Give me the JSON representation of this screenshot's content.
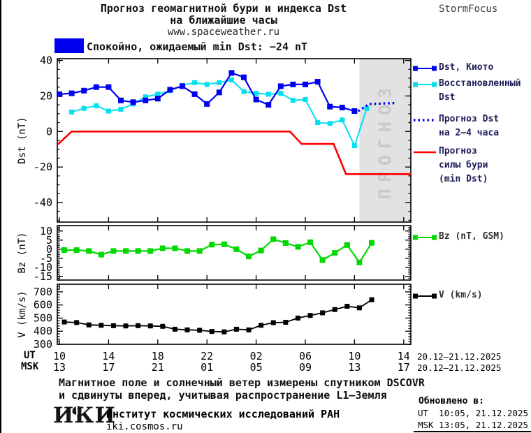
{
  "header": {
    "title_line1": "Прогноз геомагнитной бури и индекса Dst",
    "title_line2": "на ближайшие часы",
    "site_url": "www.spaceweather.ru",
    "brand": "StormFocus"
  },
  "status": {
    "label": "Спокойно, ожидаемый min Dst: −24 nT",
    "swatch_color": "#0000f0"
  },
  "colors": {
    "dst_kyoto": "#0000f0",
    "dst_restored": "#00e0ee",
    "dst_forecast": "#0000f0",
    "storm_forecast": "#ff0000",
    "bz": "#00d800",
    "v": "#000000",
    "forecast_region_fill": "#e2e2e2",
    "forecast_region_text": "#c9c9c9"
  },
  "chart_data": [
    {
      "type": "line",
      "ylabel": "Dst (nT)",
      "ylim": [
        -51,
        41
      ],
      "yticks": [
        40,
        20,
        0,
        -20,
        -40
      ],
      "y_minor_step": 5,
      "xticks_hours": [
        0,
        4,
        8,
        12,
        16,
        20,
        24,
        28
      ],
      "x_start_label": "10 UT 20.12.2025",
      "forecast_region": {
        "start_hour": 24.4,
        "label": "ПРОГНОЗ"
      },
      "series": [
        {
          "name": "Прогноз силы бури (min Dst)",
          "color": "#ff0000",
          "width": 2.6,
          "style": "solid",
          "marker": false,
          "points": [
            [
              -0.17,
              -7.5
            ],
            [
              1,
              0
            ],
            [
              18.75,
              0
            ],
            [
              19.7,
              -7
            ],
            [
              22.3,
              -7
            ],
            [
              23.3,
              -24
            ],
            [
              28.58,
              -24
            ]
          ]
        },
        {
          "name": "Восстановленный Dst",
          "color": "#00e0ee",
          "width": 2,
          "style": "solid",
          "marker": true,
          "marker_size": 7,
          "x0": 1,
          "dx": 1,
          "values": [
            11,
            13,
            14.5,
            11.5,
            12.5,
            15.5,
            19.5,
            21,
            23,
            26,
            27.5,
            26.5,
            27.5,
            29,
            22.5,
            21.5,
            21,
            21.5,
            17.5,
            18,
            5,
            4.5,
            6.5,
            -8,
            13
          ]
        },
        {
          "name": "Dst, Киото",
          "color": "#0000f0",
          "width": 2.2,
          "style": "solid",
          "marker": true,
          "marker_size": 8,
          "x0": 0,
          "dx": 1,
          "values": [
            21,
            21.5,
            23,
            25,
            25,
            17.5,
            16.5,
            17.5,
            18.5,
            23.5,
            25.5,
            21,
            15.5,
            22,
            33,
            30.5,
            18,
            15,
            25.5,
            26.5,
            26.5,
            28,
            14,
            13.5,
            11.5
          ]
        },
        {
          "name": "Прогноз Dst на 2–4 часа",
          "color": "#0000f0",
          "width": 3.4,
          "style": "dotted",
          "marker": false,
          "points": [
            [
              24.3,
              11.5
            ],
            [
              25.2,
              15.5
            ],
            [
              27.3,
              16
            ]
          ]
        }
      ]
    },
    {
      "type": "line",
      "ylabel": "Bz (nT)",
      "ylim": [
        -17,
        13
      ],
      "yticks": [
        10,
        5,
        0,
        -5,
        -10,
        -15
      ],
      "y_minor_step": 1,
      "xticks_hours": [
        0,
        4,
        8,
        12,
        16,
        20,
        24,
        28
      ],
      "series": [
        {
          "name": "Bz (nT, GSM)",
          "color": "#00d800",
          "width": 2.2,
          "style": "solid",
          "marker": true,
          "marker_size": 8,
          "x0": 0.4,
          "dx": 1,
          "values": [
            -0.5,
            -0.5,
            -1,
            -3,
            -1,
            -1,
            -1,
            -1,
            0.5,
            0.5,
            -1,
            -1,
            2.5,
            2.7,
            0,
            -4,
            -0.7,
            5.5,
            3.4,
            1.3,
            3.8,
            -6,
            -2,
            2.3,
            -7.3,
            3.5
          ]
        }
      ]
    },
    {
      "type": "line",
      "ylabel": "V (km/s)",
      "ylim": [
        300,
        758
      ],
      "yticks": [
        700,
        600,
        500,
        400,
        300
      ],
      "y_minor_step": 20,
      "xticks_hours": [
        0,
        4,
        8,
        12,
        16,
        20,
        24,
        28
      ],
      "series": [
        {
          "name": "V (km/s)",
          "color": "#000000",
          "width": 1.8,
          "style": "solid",
          "marker": true,
          "marker_size": 7,
          "x0": 0.4,
          "dx": 1,
          "values": [
            470,
            466,
            448,
            445,
            442,
            440,
            442,
            440,
            437,
            415,
            410,
            407,
            398,
            395,
            415,
            410,
            445,
            465,
            468,
            500,
            520,
            540,
            565,
            590,
            578,
            640
          ]
        }
      ]
    }
  ],
  "legend": {
    "entries": [
      {
        "sample": "squares",
        "color": "#0000f0",
        "text_color": "#1e1e5a",
        "lines": [
          "Dst, Киото"
        ]
      },
      {
        "sample": "squares",
        "color": "#00e0ee",
        "text_color": "#1e1e5a",
        "lines": [
          "Восстановленный",
          "Dst"
        ]
      },
      {
        "sample": "dotted",
        "color": "#0000f0",
        "text_color": "#1e1e5a",
        "lines": [
          "Прогноз Dst",
          "на 2–4 часа"
        ]
      },
      {
        "sample": "line",
        "color": "#ff0000",
        "text_color": "#1e1e5a",
        "lines": [
          "Прогноз",
          "силы бури",
          "(min Dst)"
        ]
      },
      {
        "sample": "squares",
        "color": "#00d800",
        "text_color": "#303030",
        "lines": [
          "Bz (nT, GSM)"
        ]
      },
      {
        "sample": "squares",
        "color": "#000000",
        "text_color": "#303030",
        "lines": [
          "V (km/s)"
        ]
      }
    ]
  },
  "xaxis": {
    "ut_label": "UT",
    "msk_label": "MSK",
    "ut_hours": [
      "10",
      "14",
      "18",
      "22",
      "02",
      "06",
      "10",
      "14"
    ],
    "msk_hours": [
      "13",
      "17",
      "21",
      "01",
      "05",
      "09",
      "13",
      "17"
    ],
    "ut_daterange": "20.12–21.12.2025",
    "msk_daterange": "20.12–21.12.2025"
  },
  "footer": {
    "note_line1": "Магнитное поле и солнечный ветер измерены спутником DSCOVR",
    "note_line2": "и сдвинуты вперед, учитывая распространение L1–Земля",
    "updated_label": "Обновлено в:",
    "updated_ut": "UT  10:05, 21.12.2025",
    "updated_msk": "MSK 13:05, 21.12.2025",
    "logo_text": "ИКИ",
    "org_name": "Институт космических исследований РАН",
    "org_site": "iki.cosmos.ru"
  }
}
